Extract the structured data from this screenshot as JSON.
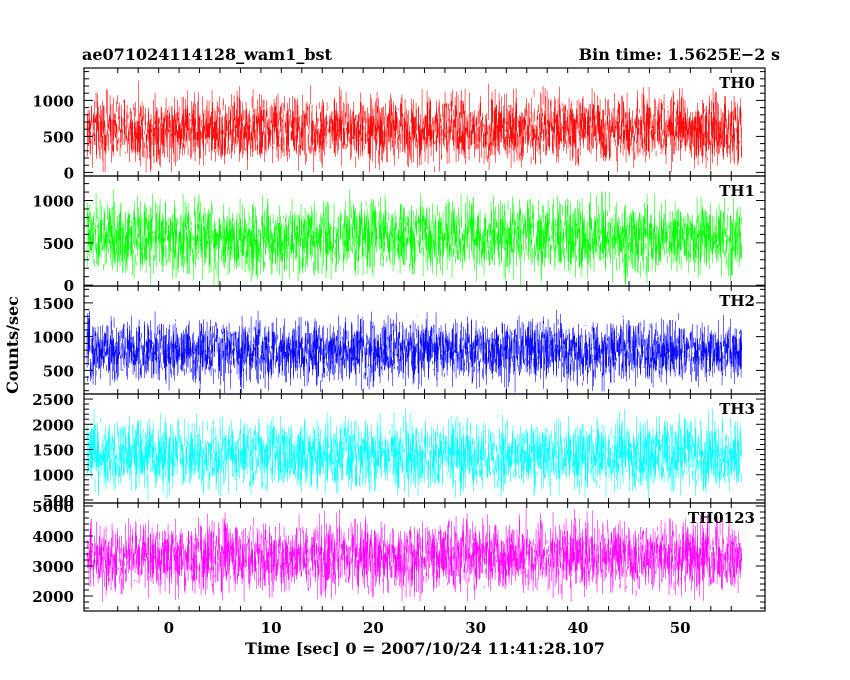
{
  "header": {
    "left_title": "ae071024114128_wam1_bst",
    "right_title": "Bin time: 1.5625E−2 s"
  },
  "chart_data": {
    "type": "line",
    "xlabel": "Time [sec] 0 = 2007/10/24 11:41:28.107",
    "ylabel": "Counts/sec",
    "xlim": [
      -8.3,
      58.3
    ],
    "x_ticks": [
      0,
      10,
      20,
      30,
      40,
      50
    ],
    "x_tick_labels": [
      "0",
      "10",
      "20",
      "30",
      "40",
      "50"
    ],
    "x_data_range": [
      -8.0,
      56.0
    ],
    "bin_time_s": 0.015625,
    "panels": [
      {
        "name": "TH0",
        "color": "#ff0000",
        "ylim": [
          -50,
          1450
        ],
        "y_ticks": [
          0,
          500,
          1000
        ],
        "y_tick_labels": [
          "0",
          "500",
          "1000"
        ],
        "mean": 600,
        "spread": 230,
        "min": 0,
        "max": 1400
      },
      {
        "name": "TH1",
        "color": "#00ff00",
        "ylim": [
          -10,
          1290
        ],
        "y_ticks": [
          0,
          500,
          1000
        ],
        "y_tick_labels": [
          "0",
          "500",
          "1000"
        ],
        "mean": 560,
        "spread": 210,
        "min": 0,
        "max": 1260
      },
      {
        "name": "TH2",
        "color": "#0000ff",
        "ylim": [
          150,
          1750
        ],
        "y_ticks": [
          500,
          1000,
          1500
        ],
        "y_tick_labels": [
          "500",
          "1000",
          "1500"
        ],
        "mean": 780,
        "spread": 230,
        "min": 150,
        "max": 1700
      },
      {
        "name": "TH3",
        "color": "#00ffff",
        "ylim": [
          440,
          2600
        ],
        "y_ticks": [
          500,
          1000,
          1500,
          2000,
          2500
        ],
        "y_tick_labels": [
          "500",
          "1000",
          "1500",
          "2000",
          "2500"
        ],
        "mean": 1380,
        "spread": 330,
        "min": 470,
        "max": 2560
      },
      {
        "name": "TH0123",
        "color": "#ff00ff",
        "ylim": [
          1500,
          5100
        ],
        "y_ticks": [
          2000,
          3000,
          4000,
          5000
        ],
        "y_tick_labels": [
          "2000",
          "3000",
          "4000",
          "5000"
        ],
        "mean": 3300,
        "spread": 560,
        "min": 1800,
        "max": 5050
      }
    ]
  }
}
